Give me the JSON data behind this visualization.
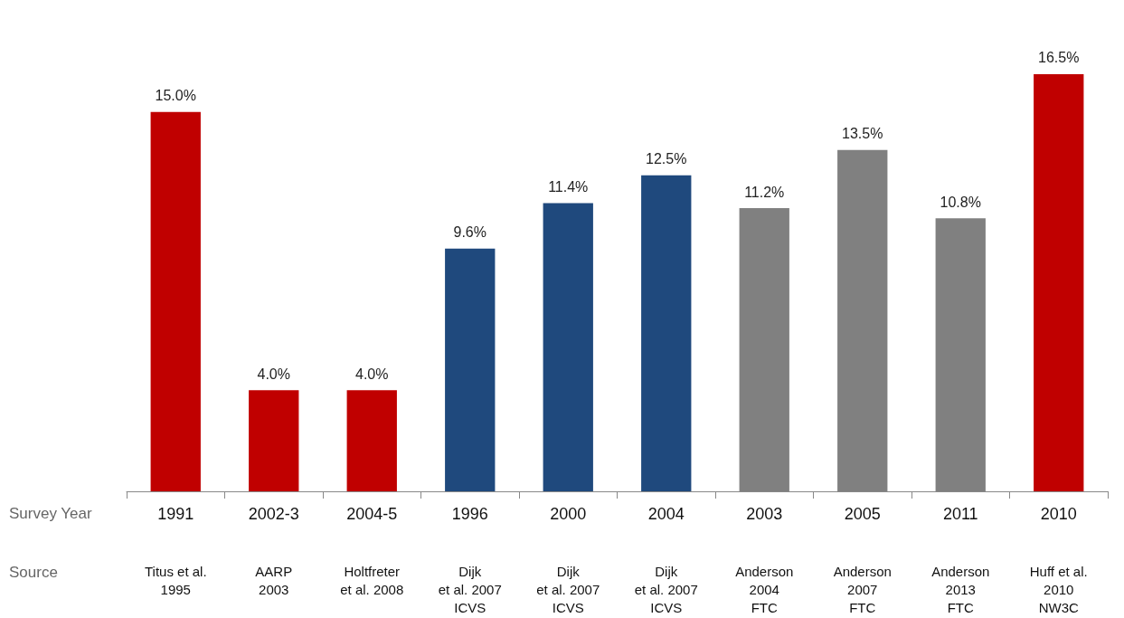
{
  "chart_data": {
    "type": "bar",
    "categories": [
      "1991",
      "2002-3",
      "2004-5",
      "1996",
      "2000",
      "2004",
      "2003",
      "2005",
      "2011",
      "2010"
    ],
    "values": [
      15.0,
      4.0,
      4.0,
      9.6,
      11.4,
      12.5,
      11.2,
      13.5,
      10.8,
      16.5
    ],
    "colors": [
      "#c00000",
      "#c00000",
      "#c00000",
      "#1f497d",
      "#1f497d",
      "#1f497d",
      "#808080",
      "#808080",
      "#808080",
      "#c00000"
    ],
    "value_labels": [
      "15.0%",
      "4.0%",
      "4.0%",
      "9.6%",
      "11.4%",
      "12.5%",
      "11.2%",
      "13.5%",
      "10.8%",
      "16.5%"
    ],
    "tick_labels": "x",
    "annotations": [
      "Survey Year",
      "Source",
      "Titus et al.\n1995",
      "AARP\n2003",
      "Holtfreter\net al. 2008",
      "Dijk\net al. 2007\nICVS",
      "Dijk\net al. 2007\nICVS",
      "Dijk\net al. 2007\nICVS",
      "Anderson\n2004\nFTC",
      "Anderson\n2007\nFTC",
      "Anderson\n2013\nFTC",
      "Huff et al.\n2010\nNW3C"
    ]
  }
}
